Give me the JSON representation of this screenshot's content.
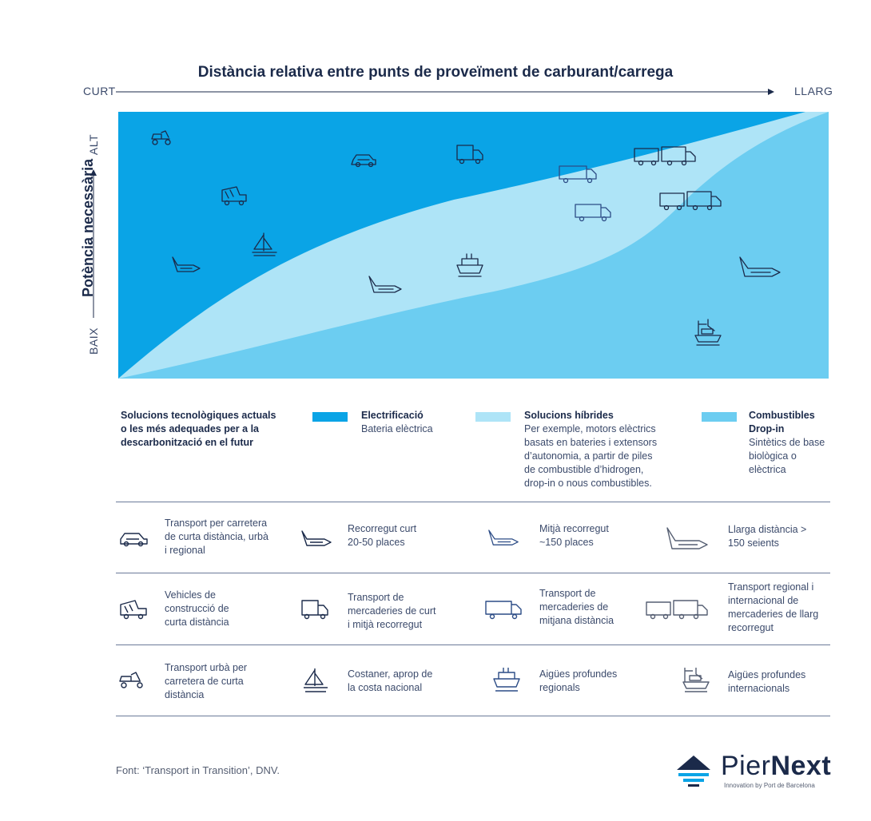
{
  "title": "Distància relativa entre punts de proveïment de carburant/carrega",
  "x_axis": {
    "left": "CURT",
    "right": "LLARG"
  },
  "y_axis": {
    "label": "Potència necessària",
    "top": "ALT",
    "bottom": "BAIX"
  },
  "colors": {
    "electrification": "#0aa4e6",
    "hybrid": "#aee4f7",
    "dropin": "#6ccdf1",
    "ink": "#1b2a4a",
    "icon": "#2c4c86"
  },
  "legend": {
    "intro": [
      "Solucions tecnològiques actuals",
      "o les més adequades per a la",
      "descarbonització en el futur"
    ],
    "items": [
      {
        "name": "Electrificació",
        "desc": [
          "Bateria elèctrica"
        ]
      },
      {
        "name": "Solucions híbrides",
        "desc": [
          "Per exemple, motors elèctrics",
          "basats en bateries i extensors",
          "d’autonomia, a partir de piles",
          "de combustible d’hidrogen,",
          "drop-in o nous combustibles."
        ]
      },
      {
        "name": "Combustibles",
        "name2": "Drop-in",
        "desc": [
          "Sintètics de base",
          "biològica o",
          "elèctrica"
        ]
      }
    ]
  },
  "diagram_icons": [
    "scooter-icon",
    "car-icon",
    "delivery-truck-icon",
    "truck-trailer-icon",
    "construction-vehicle-icon",
    "sailboat-icon",
    "small-plane-icon",
    "medium-plane-icon",
    "ferry-icon",
    "hybrid-truck-icon",
    "medium-truck-icon",
    "road-train-icon",
    "large-plane-icon",
    "cargo-ship-icon"
  ],
  "table": {
    "rows": [
      [
        {
          "icon": "car-icon",
          "lines": [
            "Transport per carretera",
            "de curta distància, urbà",
            "i regional"
          ]
        },
        {
          "icon": "small-plane-icon",
          "lines": [
            "Recorregut curt",
            "20-50 places"
          ]
        },
        {
          "icon": "medium-plane-icon",
          "lines": [
            "Mitjà recorregut",
            "~150 places"
          ]
        },
        {
          "icon": "large-plane-icon",
          "lines": [
            "Llarga distància >",
            "150 seients"
          ]
        }
      ],
      [
        {
          "icon": "construction-vehicle-icon",
          "lines": [
            "Vehicles de",
            "construcció de",
            "curta distància"
          ]
        },
        {
          "icon": "delivery-truck-icon",
          "lines": [
            "Transport de",
            "mercaderies de curt",
            "i mitjà recorregut"
          ]
        },
        {
          "icon": "medium-truck-icon",
          "lines": [
            "Transport de",
            "mercaderies de",
            "mitjana distància"
          ]
        },
        {
          "icon": "road-train-icon",
          "lines": [
            "Transport regional i",
            "internacional de",
            "mercaderies de llarg",
            "recorregut"
          ]
        }
      ],
      [
        {
          "icon": "scooter-icon",
          "lines": [
            "Transport urbà per",
            "carretera de curta",
            "distància"
          ]
        },
        {
          "icon": "sailboat-icon",
          "lines": [
            "Costaner, aprop de",
            "la costa nacional"
          ]
        },
        {
          "icon": "ferry-icon",
          "lines": [
            "Aigües profundes",
            "regionals"
          ]
        },
        {
          "icon": "cargo-ship-icon",
          "lines": [
            "Aigües profundes",
            "internacionals"
          ]
        }
      ]
    ]
  },
  "source": "Font: ‘Transport in Transition’, DNV.",
  "brand": {
    "light": "Pier",
    "bold": "Next",
    "tagline": "Innovation by Port de Barcelona"
  }
}
